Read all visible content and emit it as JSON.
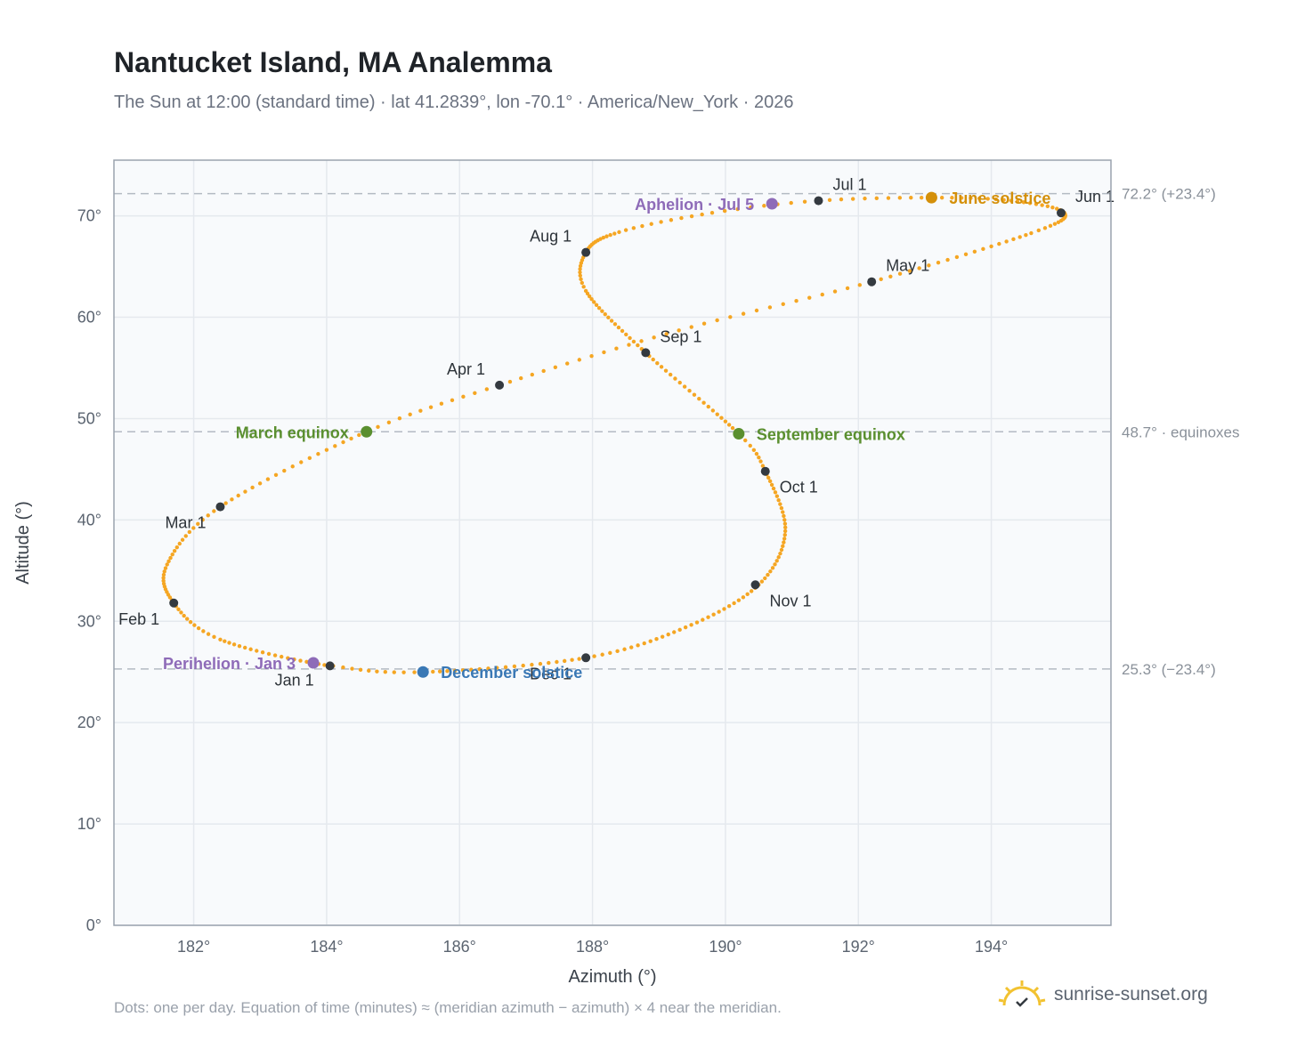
{
  "header": {
    "title": "Nantucket Island, MA Analemma",
    "subtitle": "The Sun at 12:00 (standard time) · lat 41.2839°, lon -70.1° · America/New_York · 2026"
  },
  "footer": {
    "note": "Dots: one per day. Equation of time (minutes) ≈ (meridian azimuth − azimuth) × 4 near the meridian.",
    "brand": "sunrise-sunset.org"
  },
  "colors": {
    "curve": "#f5a623",
    "marker": "#343a40",
    "perihelion": "#8e6bb8",
    "aphelion": "#8e6bb8",
    "equinox": "#5a8f2f",
    "june_solstice": "#d4900a",
    "december_solstice": "#3a78b5",
    "grid": "#e5e9ee",
    "plot_bg": "#f8fafc"
  },
  "chart_data": {
    "type": "scatter",
    "title": "Nantucket Island, MA Analemma",
    "xlabel": "Azimuth (°)",
    "ylabel": "Altitude (°)",
    "xlim": [
      180.8,
      195.8
    ],
    "ylim": [
      0,
      75.5
    ],
    "xticks": [
      182,
      184,
      186,
      188,
      190,
      192,
      194
    ],
    "yticks": [
      0,
      10,
      20,
      30,
      40,
      50,
      60,
      70
    ],
    "xtick_labels": [
      "182°",
      "184°",
      "186°",
      "188°",
      "190°",
      "192°",
      "194°"
    ],
    "ytick_labels": [
      "0°",
      "10°",
      "20°",
      "30°",
      "40°",
      "50°",
      "60°",
      "70°"
    ],
    "grid": true,
    "legend": "none",
    "daily_path": [
      {
        "day": 1,
        "az": 184.05,
        "alt": 25.6
      },
      {
        "day": 20,
        "az": 182.4,
        "alt": 28.2
      },
      {
        "day": 32,
        "az": 181.7,
        "alt": 31.8
      },
      {
        "day": 45,
        "az": 181.6,
        "alt": 35.6
      },
      {
        "day": 60,
        "az": 182.4,
        "alt": 41.3
      },
      {
        "day": 79,
        "az": 184.6,
        "alt": 48.7
      },
      {
        "day": 91,
        "az": 186.6,
        "alt": 53.3
      },
      {
        "day": 106,
        "az": 189.3,
        "alt": 58.7
      },
      {
        "day": 121,
        "az": 192.2,
        "alt": 63.5
      },
      {
        "day": 140,
        "az": 194.6,
        "alt": 68.3
      },
      {
        "day": 152,
        "az": 195.1,
        "alt": 70.3
      },
      {
        "day": 163,
        "az": 194.3,
        "alt": 71.5
      },
      {
        "day": 172,
        "az": 193.1,
        "alt": 71.8
      },
      {
        "day": 182,
        "az": 191.4,
        "alt": 71.5
      },
      {
        "day": 190,
        "az": 189.8,
        "alt": 70.3
      },
      {
        "day": 200,
        "az": 188.4,
        "alt": 68.4
      },
      {
        "day": 213,
        "az": 187.9,
        "alt": 66.4
      },
      {
        "day": 225,
        "az": 187.9,
        "alt": 62.6
      },
      {
        "day": 244,
        "az": 188.8,
        "alt": 56.5
      },
      {
        "day": 266,
        "az": 190.2,
        "alt": 48.5
      },
      {
        "day": 274,
        "az": 190.6,
        "alt": 44.8
      },
      {
        "day": 290,
        "az": 190.9,
        "alt": 38.9
      },
      {
        "day": 305,
        "az": 190.5,
        "alt": 33.6
      },
      {
        "day": 320,
        "az": 189.4,
        "alt": 29.4
      },
      {
        "day": 335,
        "az": 187.9,
        "alt": 26.4
      },
      {
        "day": 355,
        "az": 185.5,
        "alt": 25.0
      },
      {
        "day": 365,
        "az": 184.1,
        "alt": 25.6
      }
    ],
    "month_markers": [
      {
        "label": "Jan 1",
        "az": 184.05,
        "alt": 25.6,
        "anchor": "end",
        "dx": -18,
        "dy": 22
      },
      {
        "label": "Feb 1",
        "az": 181.7,
        "alt": 31.8,
        "anchor": "end",
        "dx": -16,
        "dy": 24
      },
      {
        "label": "Mar 1",
        "az": 182.4,
        "alt": 41.3,
        "anchor": "end",
        "dx": -16,
        "dy": 24
      },
      {
        "label": "Apr 1",
        "az": 186.6,
        "alt": 53.3,
        "anchor": "end",
        "dx": -16,
        "dy": -12
      },
      {
        "label": "May 1",
        "az": 192.2,
        "alt": 63.5,
        "anchor": "start",
        "dx": 16,
        "dy": -12
      },
      {
        "label": "Jun 1",
        "az": 195.05,
        "alt": 70.3,
        "anchor": "start",
        "dx": 16,
        "dy": -12
      },
      {
        "label": "Jul 1",
        "az": 191.4,
        "alt": 71.5,
        "anchor": "start",
        "dx": 16,
        "dy": -12
      },
      {
        "label": "Aug 1",
        "az": 187.9,
        "alt": 66.4,
        "anchor": "end",
        "dx": -16,
        "dy": -12
      },
      {
        "label": "Sep 1",
        "az": 188.8,
        "alt": 56.5,
        "anchor": "start",
        "dx": 16,
        "dy": -12
      },
      {
        "label": "Oct 1",
        "az": 190.6,
        "alt": 44.8,
        "anchor": "start",
        "dx": 16,
        "dy": 24
      },
      {
        "label": "Nov 1",
        "az": 190.45,
        "alt": 33.6,
        "anchor": "start",
        "dx": 16,
        "dy": 24
      },
      {
        "label": "Dec 1",
        "az": 187.9,
        "alt": 26.4,
        "anchor": "end",
        "dx": -16,
        "dy": 24
      }
    ],
    "events": [
      {
        "label": "Perihelion · Jan 3",
        "az": 183.8,
        "alt": 25.9,
        "color": "#8e6bb8",
        "anchor": "end",
        "dx": -20,
        "dy": 7
      },
      {
        "label": "March equinox",
        "az": 184.6,
        "alt": 48.7,
        "color": "#5a8f2f",
        "anchor": "end",
        "dx": -20,
        "dy": 7
      },
      {
        "label": "June solstice",
        "az": 193.1,
        "alt": 71.8,
        "color": "#d4900a",
        "anchor": "start",
        "dx": 20,
        "dy": 7
      },
      {
        "label": "Aphelion · Jul 5",
        "az": 190.7,
        "alt": 71.2,
        "color": "#8e6bb8",
        "anchor": "end",
        "dx": -20,
        "dy": 7
      },
      {
        "label": "September equinox",
        "az": 190.2,
        "alt": 48.5,
        "color": "#5a8f2f",
        "anchor": "start",
        "dx": 20,
        "dy": 7
      },
      {
        "label": "December solstice",
        "az": 185.45,
        "alt": 25.0,
        "color": "#3a78b5",
        "anchor": "start",
        "dx": 20,
        "dy": 7
      }
    ],
    "reference_lines": [
      {
        "alt": 72.2,
        "label": "72.2° (+23.4°)"
      },
      {
        "alt": 48.7,
        "label": "48.7° · equinoxes"
      },
      {
        "alt": 25.3,
        "label": "25.3° (−23.4°)"
      }
    ]
  }
}
